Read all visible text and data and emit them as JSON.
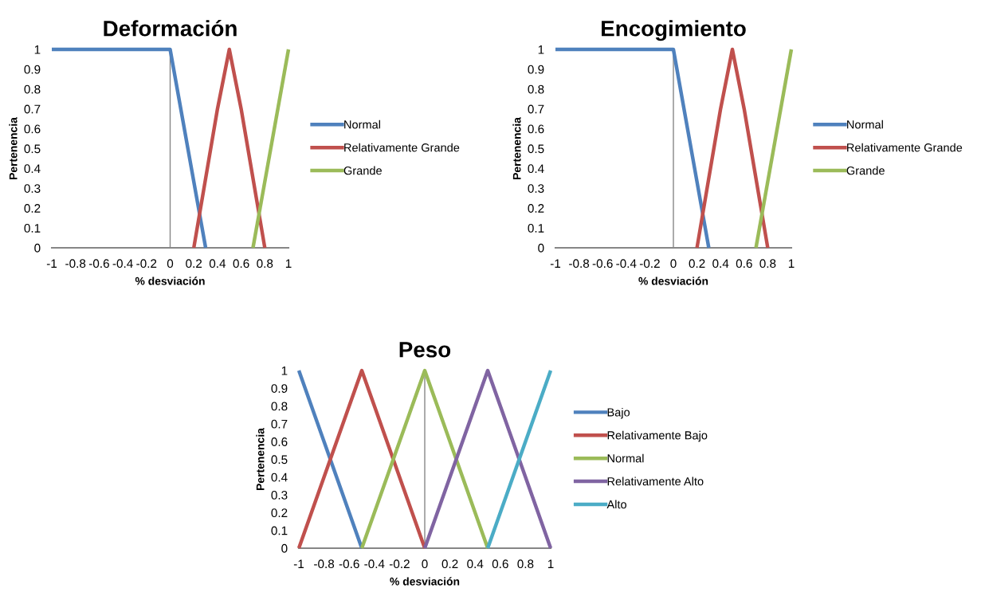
{
  "chart_data": [
    {
      "type": "line",
      "title": "Deformación",
      "xlabel": "% desviación",
      "ylabel": "Pertenencia",
      "xlim": [
        -1,
        1
      ],
      "ylim": [
        0,
        1
      ],
      "xticks": [
        -1,
        -0.8,
        -0.6,
        -0.4,
        -0.2,
        0,
        0.2,
        0.4,
        0.6,
        0.8,
        1
      ],
      "yticks": [
        0,
        0.1,
        0.2,
        0.3,
        0.4,
        0.5,
        0.6,
        0.7,
        0.8,
        0.9,
        1
      ],
      "grid": false,
      "legend": "right",
      "marker": "none",
      "line_style": "solid",
      "ref_lines": [
        {
          "axis": "x",
          "value": 0,
          "color": "#868686"
        }
      ],
      "series": [
        {
          "name": "Normal",
          "color": "#4f81bd",
          "x": [
            -1,
            0,
            0.3
          ],
          "values": [
            1,
            1,
            0
          ]
        },
        {
          "name": "Relativamente Grande",
          "color": "#c0504d",
          "x": [
            0.2,
            0.4,
            0.5,
            0.6,
            0.8
          ],
          "values": [
            0,
            0.7,
            1,
            0.7,
            0
          ]
        },
        {
          "name": "Grande",
          "color": "#9bbb59",
          "x": [
            0.7,
            1
          ],
          "values": [
            0,
            1
          ]
        }
      ]
    },
    {
      "type": "line",
      "title": "Encogimiento",
      "xlabel": "% desviación",
      "ylabel": "Pertenencia",
      "xlim": [
        -1,
        1
      ],
      "ylim": [
        0,
        1
      ],
      "xticks": [
        -1,
        -0.8,
        -0.6,
        -0.4,
        -0.2,
        0,
        0.2,
        0.4,
        0.6,
        0.8,
        1
      ],
      "yticks": [
        0,
        0.1,
        0.2,
        0.3,
        0.4,
        0.5,
        0.6,
        0.7,
        0.8,
        0.9,
        1
      ],
      "grid": false,
      "legend": "right",
      "marker": "none",
      "line_style": "solid",
      "ref_lines": [
        {
          "axis": "x",
          "value": 0,
          "color": "#868686"
        }
      ],
      "series": [
        {
          "name": "Normal",
          "color": "#4f81bd",
          "x": [
            -1,
            0,
            0.3
          ],
          "values": [
            1,
            1,
            0
          ]
        },
        {
          "name": "Relativamente Grande",
          "color": "#c0504d",
          "x": [
            0.2,
            0.4,
            0.5,
            0.6,
            0.8
          ],
          "values": [
            0,
            0.7,
            1,
            0.7,
            0
          ]
        },
        {
          "name": "Grande",
          "color": "#9bbb59",
          "x": [
            0.7,
            1
          ],
          "values": [
            0,
            1
          ]
        }
      ]
    },
    {
      "type": "line",
      "title": "Peso",
      "xlabel": "% desviación",
      "ylabel": "Pertenencia",
      "xlim": [
        -1,
        1
      ],
      "ylim": [
        0,
        1
      ],
      "xticks": [
        -1,
        -0.8,
        -0.6,
        -0.4,
        -0.2,
        0,
        0.2,
        0.4,
        0.6,
        0.8,
        1
      ],
      "yticks": [
        0,
        0.1,
        0.2,
        0.3,
        0.4,
        0.5,
        0.6,
        0.7,
        0.8,
        0.9,
        1
      ],
      "grid": false,
      "legend": "right",
      "marker": "none",
      "line_style": "solid",
      "ref_lines": [
        {
          "axis": "x",
          "value": 0,
          "color": "#868686"
        }
      ],
      "series": [
        {
          "name": "Bajo",
          "color": "#4f81bd",
          "x": [
            -1,
            -0.5
          ],
          "values": [
            1,
            0
          ]
        },
        {
          "name": "Relativamente Bajo",
          "color": "#c0504d",
          "x": [
            -1,
            -0.6,
            -0.5,
            -0.4,
            0
          ],
          "values": [
            0,
            0.8,
            1,
            0.8,
            0
          ]
        },
        {
          "name": "Normal",
          "color": "#9bbb59",
          "x": [
            -0.5,
            -0.1,
            0,
            0.1,
            0.5
          ],
          "values": [
            0,
            0.8,
            1,
            0.8,
            0
          ]
        },
        {
          "name": "Relativamente Alto",
          "color": "#8064a2",
          "x": [
            0,
            0.4,
            0.5,
            0.6,
            1
          ],
          "values": [
            0,
            0.8,
            1,
            0.8,
            0
          ]
        },
        {
          "name": "Alto",
          "color": "#4bacc6",
          "x": [
            0.5,
            1
          ],
          "values": [
            0,
            1
          ]
        }
      ]
    }
  ]
}
